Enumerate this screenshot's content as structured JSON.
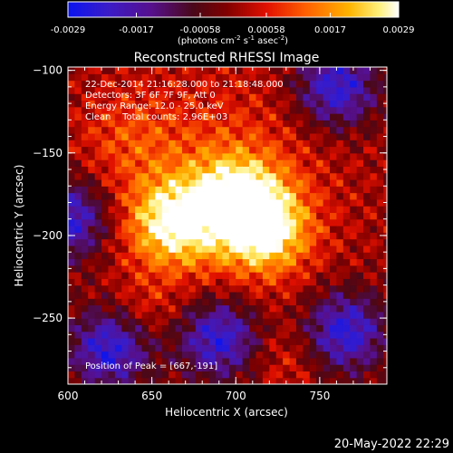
{
  "colorbar": {
    "ticks": [
      "-0.0029",
      "-0.0017",
      "-0.00058",
      "0.00058",
      "0.0017",
      "0.0029"
    ],
    "tick_values": [
      -0.0029,
      -0.0017,
      -0.00058,
      0.00058,
      0.0017,
      0.0029
    ],
    "range": [
      -0.0029,
      0.0029
    ],
    "units_base": "(photons cm",
    "units_sup1": "-2",
    "units_mid": " s",
    "units_sup2": "-1",
    "units_tail": " asec",
    "units_sup3": "-2",
    "units_end": ")"
  },
  "chart_data": {
    "type": "heatmap",
    "title": "Reconstructed RHESSI Image",
    "xlabel": "Heliocentric X (arcsec)",
    "ylabel": "Heliocentric Y (arcsec)",
    "xlim": [
      600,
      790
    ],
    "ylim": [
      -290,
      -98
    ],
    "x_ticks": [
      600,
      650,
      700,
      750
    ],
    "y_ticks": [
      -100,
      -150,
      -200,
      -250
    ],
    "x_tick_labels": [
      "600",
      "650",
      "700",
      "750"
    ],
    "y_tick_labels": [
      "−100",
      "−150",
      "−200",
      "−250"
    ],
    "colormap": "rainbow/hot (blue-purple-red-orange-yellow-white)",
    "annotations": [
      "22-Dec-2014 21:16:28.000 to 21:18:48.000",
      "Detectors: 3F 6F 7F 9F, Att 0",
      "Energy Range: 12.0 - 25.0 keV",
      "Clean    Total counts: 2.96E+03"
    ],
    "peak_label": "Position of Peak = [667,-191]",
    "peak": [
      667,
      -191
    ],
    "bright_sources": [
      [
        662,
        -192
      ],
      [
        718,
        -196
      ],
      [
        700,
        -178
      ]
    ],
    "negative_regions": [
      [
        760,
        -110
      ],
      [
        625,
        -268
      ],
      [
        690,
        -262
      ],
      [
        765,
        -258
      ],
      [
        600,
        -190
      ]
    ]
  },
  "footer": {
    "date": "20-May-2022 22:29"
  }
}
